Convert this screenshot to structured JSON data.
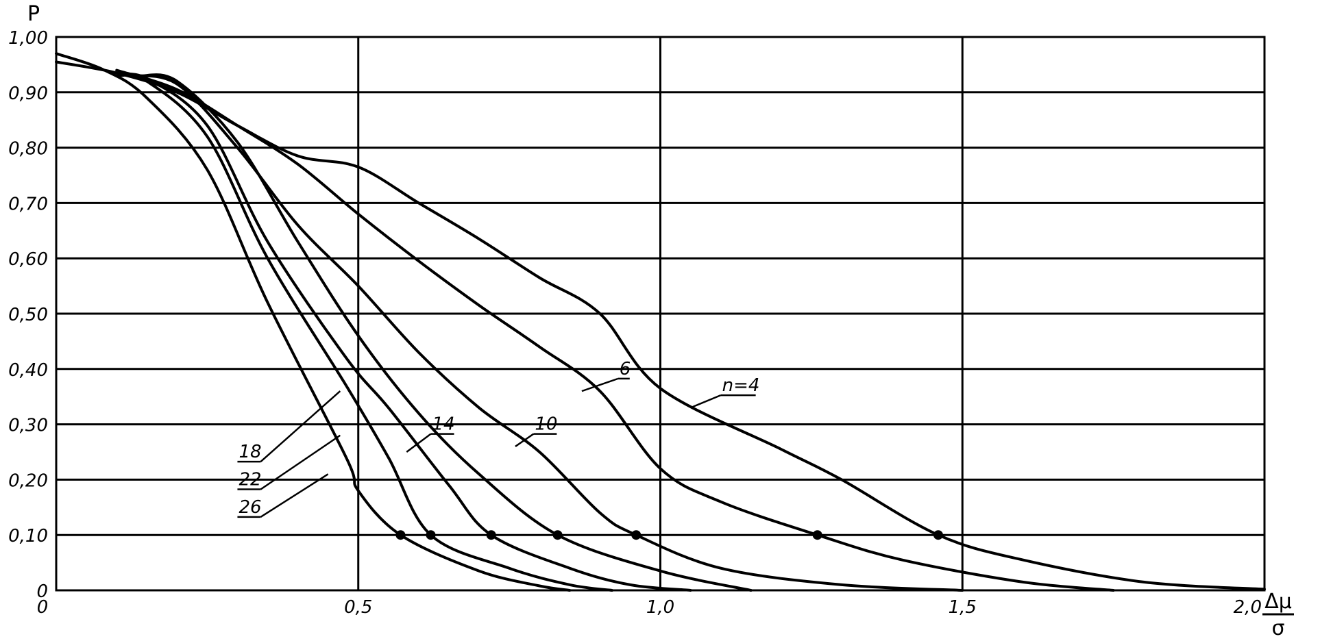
{
  "chart_data": {
    "type": "line",
    "ylabel": "P",
    "xlabel_numerator": "Δμ",
    "xlabel_denominator": "σ",
    "xlim": [
      0,
      2.0
    ],
    "ylim": [
      0,
      1.0
    ],
    "grid": true,
    "x_ticks": [
      "0",
      "0,5",
      "1,0",
      "1,5",
      "2,0"
    ],
    "x_tick_values": [
      0,
      0.5,
      1.0,
      1.5,
      2.0
    ],
    "y_ticks": [
      "0",
      "0,10",
      "0,20",
      "0,30",
      "0,40",
      "0,50",
      "0,60",
      "0,70",
      "0,80",
      "0,90",
      "1,00"
    ],
    "y_tick_values": [
      0,
      0.1,
      0.2,
      0.3,
      0.4,
      0.5,
      0.6,
      0.7,
      0.8,
      0.9,
      1.0
    ],
    "series": [
      {
        "name": "n=4",
        "marker": [
          1.46,
          0.1
        ],
        "points": [
          [
            0,
            0.955
          ],
          [
            0.1,
            0.935
          ],
          [
            0.2,
            0.9
          ],
          [
            0.3,
            0.84
          ],
          [
            0.4,
            0.785
          ],
          [
            0.5,
            0.765
          ],
          [
            0.6,
            0.7
          ],
          [
            0.7,
            0.635
          ],
          [
            0.8,
            0.565
          ],
          [
            0.9,
            0.5
          ],
          [
            1.0,
            0.365
          ],
          [
            1.2,
            0.255
          ],
          [
            1.3,
            0.2
          ],
          [
            1.46,
            0.1
          ],
          [
            1.6,
            0.055
          ],
          [
            1.8,
            0.015
          ],
          [
            2.0,
            0.002
          ]
        ]
      },
      {
        "name": "6",
        "marker": [
          1.26,
          0.1
        ],
        "points": [
          [
            0.1,
            0.94
          ],
          [
            0.2,
            0.905
          ],
          [
            0.3,
            0.84
          ],
          [
            0.4,
            0.77
          ],
          [
            0.5,
            0.68
          ],
          [
            0.6,
            0.595
          ],
          [
            0.7,
            0.515
          ],
          [
            0.8,
            0.44
          ],
          [
            0.9,
            0.36
          ],
          [
            1.0,
            0.22
          ],
          [
            1.1,
            0.16
          ],
          [
            1.26,
            0.1
          ],
          [
            1.4,
            0.055
          ],
          [
            1.6,
            0.015
          ],
          [
            1.75,
            0
          ]
        ]
      },
      {
        "name": "10",
        "marker": [
          0.96,
          0.1
        ],
        "points": [
          [
            0.12,
            0.93
          ],
          [
            0.2,
            0.915
          ],
          [
            0.3,
            0.8
          ],
          [
            0.4,
            0.66
          ],
          [
            0.5,
            0.55
          ],
          [
            0.6,
            0.43
          ],
          [
            0.7,
            0.33
          ],
          [
            0.8,
            0.25
          ],
          [
            0.9,
            0.14
          ],
          [
            0.96,
            0.1
          ],
          [
            1.1,
            0.04
          ],
          [
            1.3,
            0.01
          ],
          [
            1.5,
            0
          ]
        ]
      },
      {
        "name": "14",
        "marker": [
          0.83,
          0.1
        ],
        "points": [
          [
            0.14,
            0.93
          ],
          [
            0.2,
            0.92
          ],
          [
            0.3,
            0.81
          ],
          [
            0.4,
            0.63
          ],
          [
            0.5,
            0.46
          ],
          [
            0.6,
            0.32
          ],
          [
            0.7,
            0.21
          ],
          [
            0.83,
            0.1
          ],
          [
            1.0,
            0.035
          ],
          [
            1.15,
            0
          ]
        ]
      },
      {
        "name": "18",
        "marker": [
          0.72,
          0.1
        ],
        "points": [
          [
            0.1,
            0.93
          ],
          [
            0.15,
            0.925
          ],
          [
            0.25,
            0.84
          ],
          [
            0.35,
            0.63
          ],
          [
            0.48,
            0.42
          ],
          [
            0.55,
            0.33
          ],
          [
            0.65,
            0.19
          ],
          [
            0.72,
            0.1
          ],
          [
            0.85,
            0.04
          ],
          [
            0.95,
            0.01
          ],
          [
            1.05,
            0
          ]
        ]
      },
      {
        "name": "22",
        "marker": [
          0.62,
          0.1
        ],
        "points": [
          [
            0.1,
            0.93
          ],
          [
            0.15,
            0.92
          ],
          [
            0.25,
            0.82
          ],
          [
            0.35,
            0.6
          ],
          [
            0.48,
            0.37
          ],
          [
            0.55,
            0.24
          ],
          [
            0.62,
            0.1
          ],
          [
            0.75,
            0.04
          ],
          [
            0.85,
            0.01
          ],
          [
            0.92,
            0
          ]
        ]
      },
      {
        "name": "26",
        "marker": [
          0.57,
          0.1
        ],
        "points": [
          [
            0,
            0.97
          ],
          [
            0.08,
            0.94
          ],
          [
            0.15,
            0.89
          ],
          [
            0.25,
            0.76
          ],
          [
            0.35,
            0.52
          ],
          [
            0.48,
            0.24
          ],
          [
            0.5,
            0.18
          ],
          [
            0.57,
            0.1
          ],
          [
            0.7,
            0.035
          ],
          [
            0.8,
            0.008
          ],
          [
            0.85,
            0
          ]
        ]
      }
    ],
    "labels": [
      {
        "text": "n=4",
        "anchor": [
          1.1,
          0.36
        ],
        "leader_end": [
          1.05,
          0.33
        ]
      },
      {
        "text": "6",
        "anchor": [
          0.93,
          0.39
        ],
        "leader_end": [
          0.87,
          0.36
        ]
      },
      {
        "text": "10",
        "anchor": [
          0.79,
          0.29
        ],
        "leader_end": [
          0.76,
          0.26
        ]
      },
      {
        "text": "14",
        "anchor": [
          0.62,
          0.29
        ],
        "leader_end": [
          0.58,
          0.25
        ]
      },
      {
        "text": "18",
        "anchor": [
          0.3,
          0.24
        ],
        "leader_end": [
          0.47,
          0.36
        ]
      },
      {
        "text": "22",
        "anchor": [
          0.3,
          0.19
        ],
        "leader_end": [
          0.47,
          0.28
        ]
      },
      {
        "text": "26",
        "anchor": [
          0.3,
          0.14
        ],
        "leader_end": [
          0.45,
          0.21
        ]
      }
    ]
  }
}
